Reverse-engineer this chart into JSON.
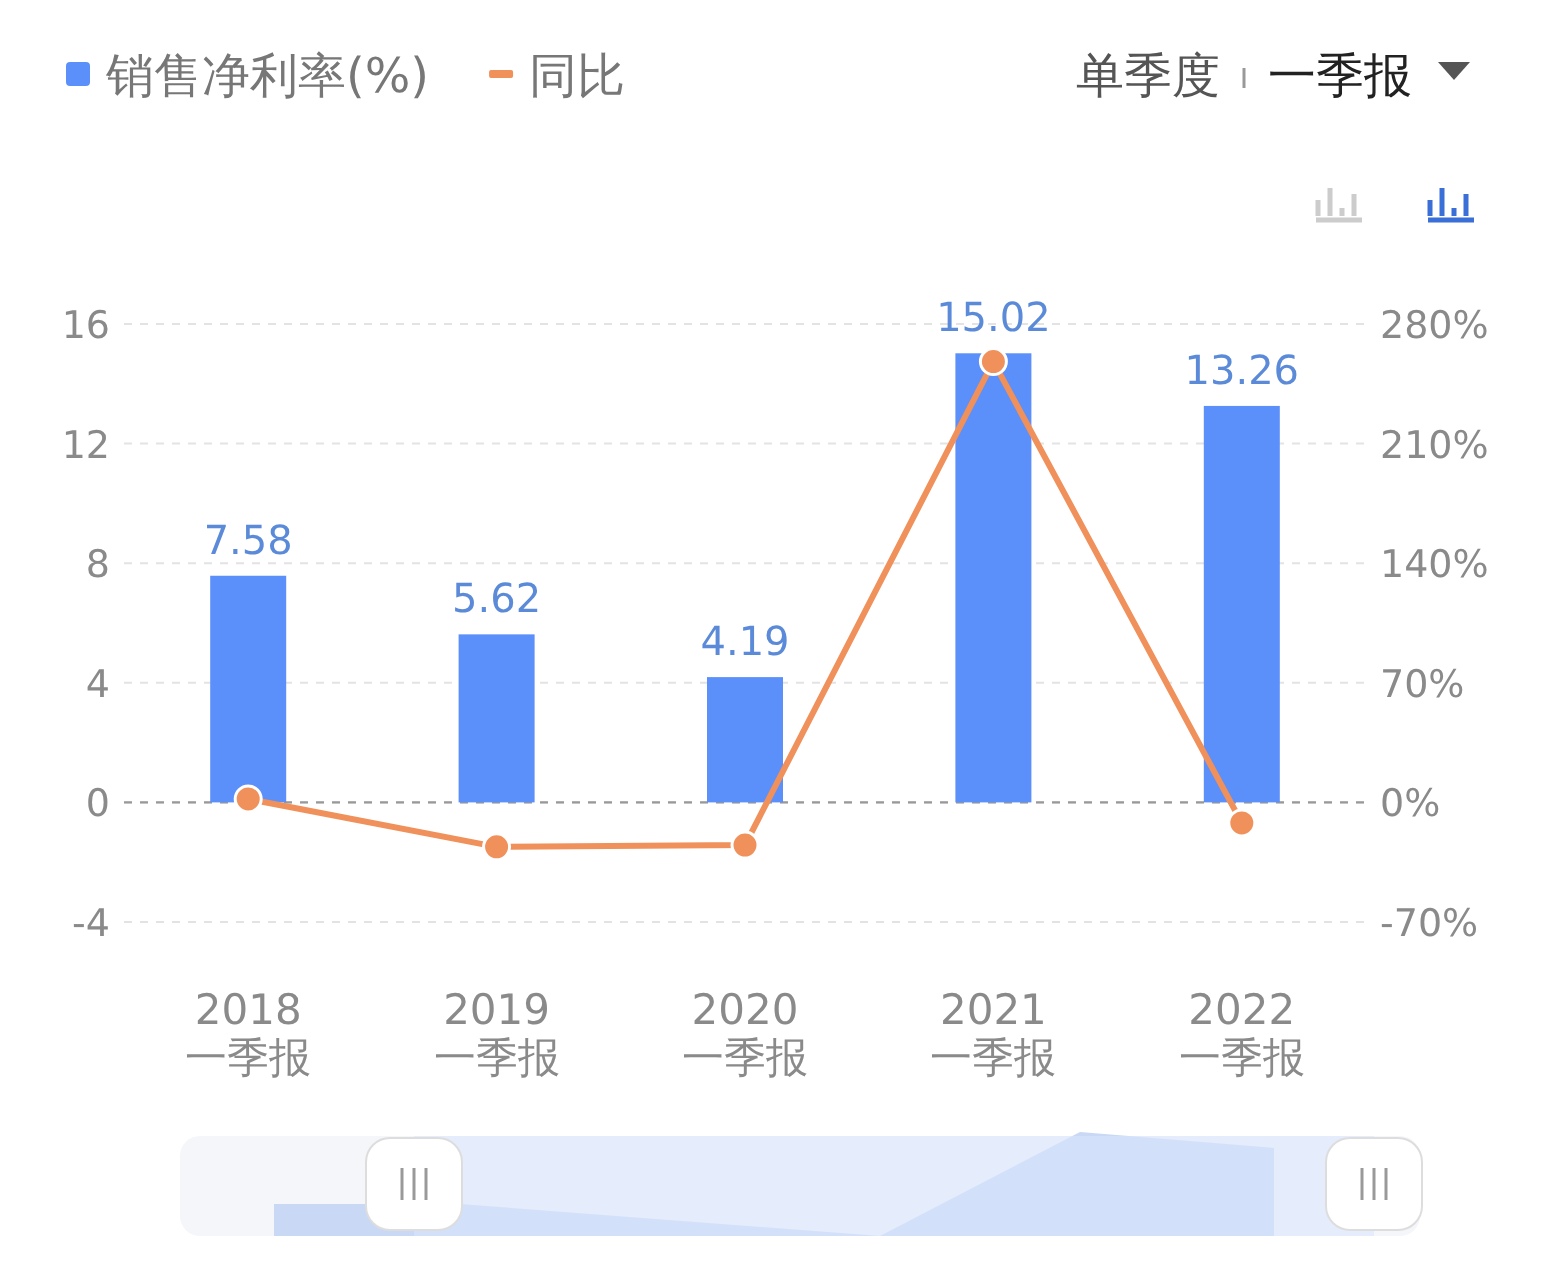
{
  "chart_data": {
    "type": "bar",
    "categories": [
      "2018\n一季报",
      "2019\n一季报",
      "2020\n一季报",
      "2021\n一季报",
      "2022\n一季报"
    ],
    "series": [
      {
        "name": "销售净利率(%)",
        "color": "#5b8ff9",
        "values": [
          7.58,
          5.62,
          4.19,
          15.02,
          13.26
        ],
        "value_labels": [
          "7.58",
          "5.62",
          "4.19",
          "15.02",
          "13.26"
        ]
      },
      {
        "name": "同比",
        "type": "line",
        "axis": "y2",
        "color": "#f0905a",
        "marker": "circle",
        "values": [
          2,
          -26,
          -25,
          258,
          -12
        ]
      }
    ],
    "ylim": [
      -4,
      16
    ],
    "yticks": [
      -4,
      0,
      4,
      8,
      12,
      16
    ],
    "y2lim": [
      -70,
      280
    ],
    "y2ticks": [
      {
        "value": -70,
        "label": "-70%"
      },
      {
        "value": 0,
        "label": "0%"
      },
      {
        "value": 70,
        "label": "70%"
      },
      {
        "value": 140,
        "label": "140%"
      },
      {
        "value": 210,
        "label": "210%"
      },
      {
        "value": 280,
        "label": "280%"
      }
    ],
    "ref_lines": [
      {
        "axis": "y",
        "value": 0,
        "color": "#999999",
        "line_style": "dashed"
      }
    ],
    "grid": "y",
    "legend": "top left",
    "annotations": [
      "单季度",
      "一季报"
    ]
  }
}
